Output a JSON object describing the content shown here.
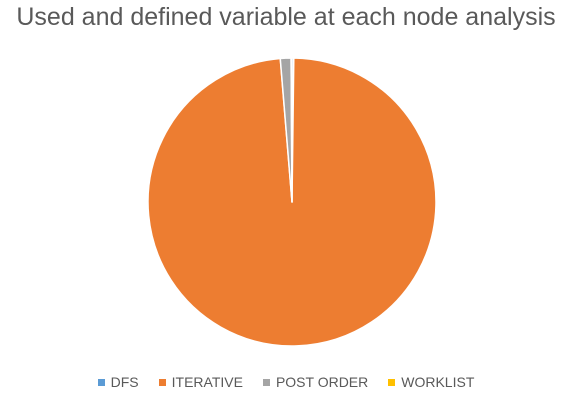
{
  "chart_data": {
    "type": "pie",
    "title": "Used and defined variable at each node analysis",
    "slices": [
      {
        "label": "DFS",
        "value": 0.2,
        "color": "#5b9bd5"
      },
      {
        "label": "ITERATIVE",
        "value": 98.5,
        "color": "#ed7d31"
      },
      {
        "label": "POST ORDER",
        "value": 1.2,
        "color": "#a5a5a5"
      },
      {
        "label": "WORKLIST",
        "value": 0.1,
        "color": "#ffc000"
      }
    ],
    "legend_position": "bottom"
  }
}
